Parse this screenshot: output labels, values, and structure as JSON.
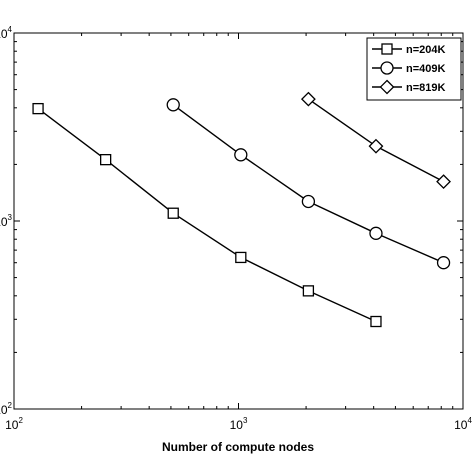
{
  "chart_data": {
    "type": "line",
    "xlabel": "Number of compute nodes",
    "ylabel": "",
    "xscale": "log",
    "yscale": "log",
    "xlim": [
      100,
      10000
    ],
    "ylim": [
      100,
      10000
    ],
    "x_ticks": [
      {
        "value": 100,
        "base": "10",
        "exp": "2"
      },
      {
        "value": 1000,
        "base": "10",
        "exp": "3"
      },
      {
        "value": 10000,
        "base": "10",
        "exp": "4"
      }
    ],
    "y_ticks": [
      {
        "value": 100,
        "base": "10",
        "exp": "2"
      },
      {
        "value": 1000,
        "base": "10",
        "exp": "3"
      },
      {
        "value": 10000,
        "base": "10",
        "exp": "4"
      }
    ],
    "grid": false,
    "legend_position": "top-right",
    "series": [
      {
        "name": "n=204K",
        "marker": "square",
        "x": [
          128,
          256,
          512,
          1024,
          2048,
          4096
        ],
        "y": [
          3960,
          2120,
          1100,
          640,
          425,
          292
        ]
      },
      {
        "name": "n=409K",
        "marker": "circle",
        "x": [
          512,
          1024,
          2048,
          4096,
          8192
        ],
        "y": [
          4150,
          2250,
          1270,
          860,
          600
        ]
      },
      {
        "name": "n=819K",
        "marker": "diamond",
        "x": [
          2048,
          4096,
          8192
        ],
        "y": [
          4450,
          2500,
          1620
        ]
      }
    ]
  }
}
